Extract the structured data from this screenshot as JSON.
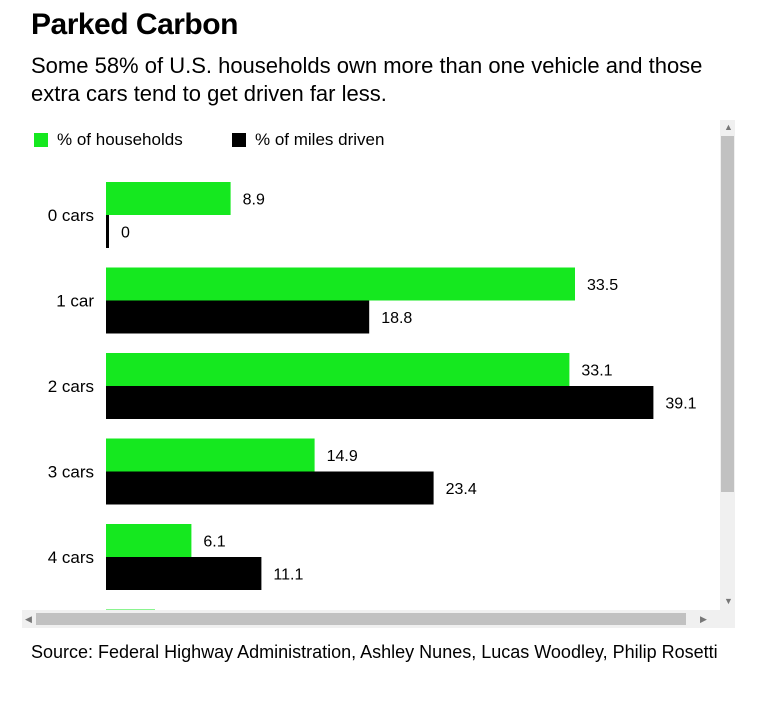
{
  "header": {
    "title": "Parked Carbon",
    "subtitle": "Some 58% of U.S. households own more than one vehicle and those extra cars tend to get driven far less."
  },
  "chart_data": {
    "type": "bar",
    "orientation": "horizontal",
    "categories": [
      "0 cars",
      "1 car",
      "2 cars",
      "3 cars",
      "4 cars",
      ""
    ],
    "series": [
      {
        "name": "% of households",
        "color": "#15e81f",
        "values": [
          8.9,
          33.5,
          33.1,
          14.9,
          6.1,
          3.5
        ],
        "labels": [
          "8.9",
          "33.5",
          "33.1",
          "14.9",
          "6.1",
          ""
        ]
      },
      {
        "name": "% of miles driven",
        "color": "#000000",
        "values": [
          0,
          18.8,
          39.1,
          23.4,
          11.1,
          null
        ],
        "labels": [
          "0",
          "18.8",
          "39.1",
          "23.4",
          "11.1",
          ""
        ]
      }
    ],
    "xlim": [
      0,
      40
    ],
    "grid": false,
    "legend": "top-left"
  },
  "footer": {
    "source": "Source: Federal Highway Administration, Ashley Nunes, Lucas Woodley, Philip Rosetti"
  }
}
